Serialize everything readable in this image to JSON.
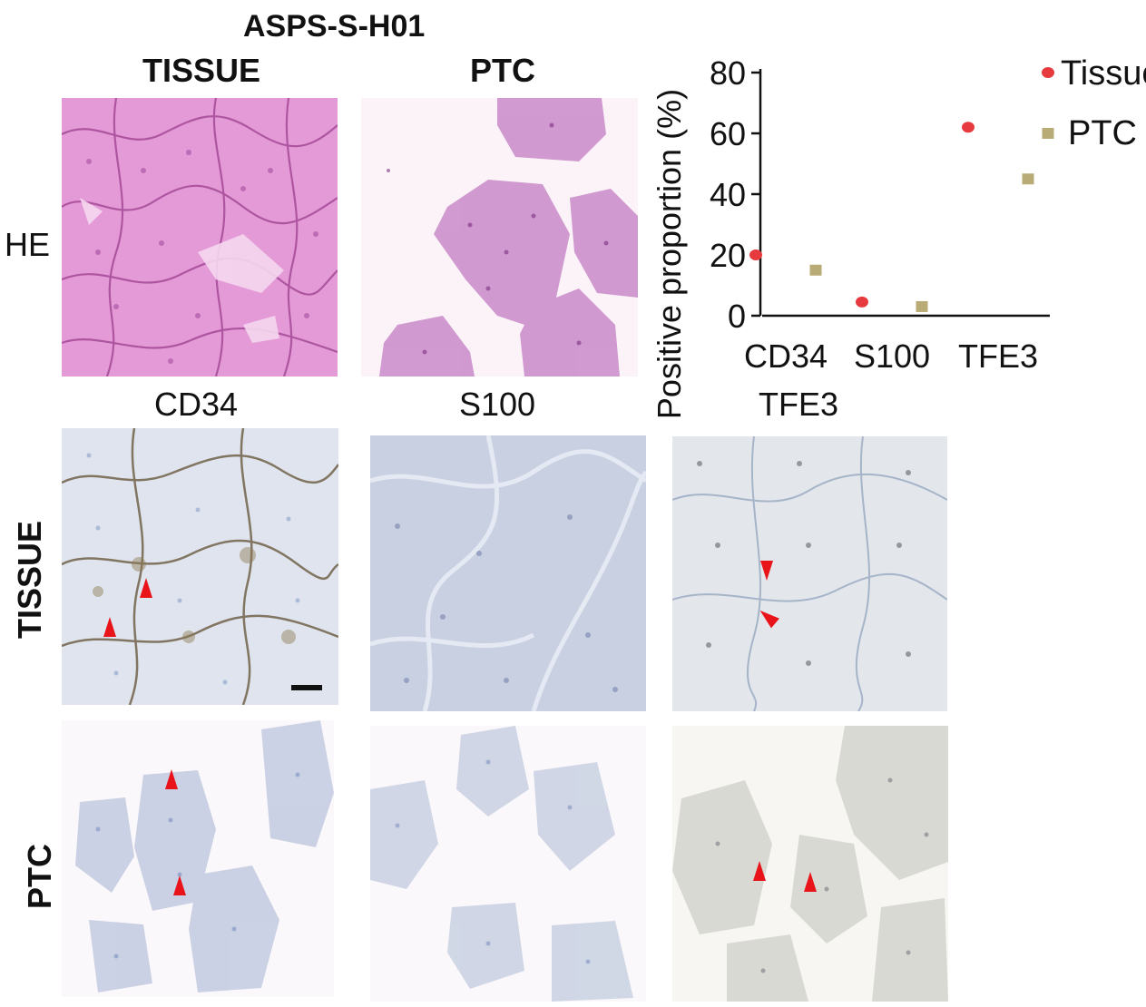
{
  "figure": {
    "title": "ASPS-S-H01",
    "col_headers": [
      "TISSUE",
      "PTC"
    ],
    "he_row_label": "HE",
    "stain_labels": [
      "CD34",
      "S100",
      "TFE3"
    ],
    "row_labels": [
      "TISSUE",
      "PTC"
    ]
  },
  "colors": {
    "tissue_marker": "#e63a3f",
    "ptc_marker": "#b8ab76",
    "arrow": "#e8141a"
  },
  "chart_data": {
    "type": "scatter",
    "ylabel": "Positive proportion (%)",
    "xlabel": "",
    "categories": [
      "CD34",
      "S100",
      "TFE3"
    ],
    "ylim": [
      0,
      80
    ],
    "yticks": [
      0,
      20,
      40,
      60,
      80
    ],
    "legend_position": "top-right",
    "series": [
      {
        "name": "Tissue",
        "marker": "circle",
        "values": [
          20,
          4.5,
          62
        ]
      },
      {
        "name": "PTC",
        "marker": "square",
        "values": [
          15,
          3,
          45
        ]
      }
    ]
  }
}
